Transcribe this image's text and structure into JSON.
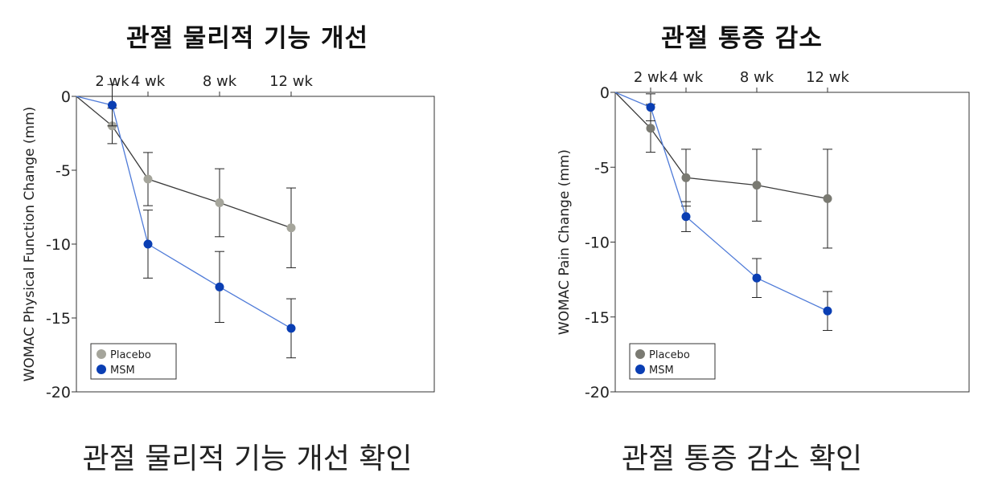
{
  "charts": [
    {
      "title": "관절 물리적 기능 개선",
      "caption": "관절 물리적 기능 개선 확인",
      "chart_data": {
        "type": "line",
        "ylabel": "WOMAC Physical Function Change (mm)",
        "x": [
          0,
          2,
          4,
          8,
          12
        ],
        "x_tick_labels": [
          "2 wk",
          "4 wk",
          "8 wk",
          "12 wk"
        ],
        "ylim": [
          -20,
          0
        ],
        "y_ticks": [
          0,
          -5,
          -10,
          -15,
          -20
        ],
        "legend_position": "bottom-left",
        "grid": false,
        "series": [
          {
            "name": "Placebo",
            "color": "#a5a59b",
            "line_color": "#3a3a3a",
            "values": [
              0,
              -2.0,
              -5.6,
              -7.2,
              -8.9
            ],
            "error": [
              0,
              1.2,
              1.8,
              2.3,
              2.7
            ]
          },
          {
            "name": "MSM",
            "color": "#0a3eb3",
            "line_color": "#4f7bd8",
            "values": [
              0,
              -0.6,
              -10.0,
              -12.9,
              -15.7
            ],
            "error": [
              0,
              1.4,
              2.3,
              2.4,
              2.0
            ]
          }
        ]
      }
    },
    {
      "title": "관절 통증 감소",
      "caption": "관절 통증 감소 확인",
      "chart_data": {
        "type": "line",
        "ylabel": "WOMAC Pain Change (mm)",
        "x": [
          0,
          2,
          4,
          8,
          12
        ],
        "x_tick_labels": [
          "2 wk",
          "4 wk",
          "8 wk",
          "12 wk"
        ],
        "ylim": [
          -20,
          0
        ],
        "y_ticks": [
          0,
          -5,
          -10,
          -15,
          -20
        ],
        "legend_position": "bottom-left",
        "grid": false,
        "series": [
          {
            "name": "Placebo",
            "color": "#7a7a72",
            "line_color": "#3a3a3a",
            "values": [
              0,
              -2.4,
              -5.7,
              -6.2,
              -7.1
            ],
            "error": [
              0,
              1.6,
              1.9,
              2.4,
              3.3
            ]
          },
          {
            "name": "MSM",
            "color": "#0a3eb3",
            "line_color": "#4f7bd8",
            "values": [
              0,
              -1.0,
              -8.3,
              -12.4,
              -14.6
            ],
            "error": [
              0,
              0.9,
              1.0,
              1.3,
              1.3
            ]
          }
        ]
      }
    }
  ]
}
